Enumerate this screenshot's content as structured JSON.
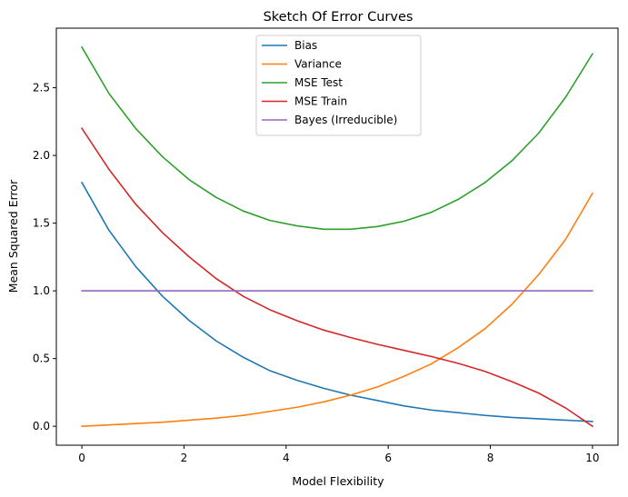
{
  "chart_data": {
    "type": "line",
    "title": "Sketch Of Error Curves",
    "xlabel": "Model Flexibility",
    "ylabel": "Mean Squared Error",
    "xlim": [
      -0.5,
      10.5
    ],
    "ylim": [
      -0.14,
      2.94
    ],
    "xticks": [
      0,
      2,
      4,
      6,
      8,
      10
    ],
    "yticks": [
      0.0,
      0.5,
      1.0,
      1.5,
      2.0,
      2.5
    ],
    "xtick_labels": [
      "0",
      "2",
      "4",
      "6",
      "8",
      "10"
    ],
    "ytick_labels": [
      "0.0",
      "0.5",
      "1.0",
      "1.5",
      "2.0",
      "2.5"
    ],
    "grid": false,
    "legend_position": "top-center",
    "x": [
      0,
      0.526,
      1.053,
      1.579,
      2.105,
      2.632,
      3.158,
      3.684,
      4.211,
      4.737,
      5.263,
      5.789,
      6.316,
      6.842,
      7.368,
      7.895,
      8.421,
      8.947,
      9.474,
      10
    ],
    "series": [
      {
        "name": "Bias",
        "color": "#1f77b4",
        "values": [
          1.8,
          1.45,
          1.18,
          0.96,
          0.78,
          0.63,
          0.51,
          0.41,
          0.34,
          0.28,
          0.23,
          0.19,
          0.15,
          0.12,
          0.1,
          0.08,
          0.065,
          0.055,
          0.045,
          0.035
        ]
      },
      {
        "name": "Variance",
        "color": "#ff7f0e",
        "values": [
          0.0,
          0.01,
          0.02,
          0.03,
          0.045,
          0.06,
          0.08,
          0.11,
          0.14,
          0.18,
          0.23,
          0.29,
          0.37,
          0.46,
          0.58,
          0.72,
          0.9,
          1.12,
          1.38,
          1.72
        ]
      },
      {
        "name": "MSE Test",
        "color": "#2ca02c",
        "values": [
          2.8,
          2.46,
          2.2,
          1.99,
          1.82,
          1.69,
          1.59,
          1.52,
          1.48,
          1.455,
          1.455,
          1.475,
          1.515,
          1.58,
          1.675,
          1.8,
          1.96,
          2.165,
          2.43,
          2.75
        ]
      },
      {
        "name": "MSE Train",
        "color": "#d62728",
        "values": [
          2.2,
          1.9,
          1.64,
          1.43,
          1.25,
          1.09,
          0.96,
          0.86,
          0.78,
          0.71,
          0.655,
          0.605,
          0.56,
          0.515,
          0.465,
          0.405,
          0.33,
          0.245,
          0.135,
          0.0
        ]
      },
      {
        "name": "Bayes (Irreducible)",
        "color": "#9467bd",
        "values": [
          1,
          1,
          1,
          1,
          1,
          1,
          1,
          1,
          1,
          1,
          1,
          1,
          1,
          1,
          1,
          1,
          1,
          1,
          1,
          1
        ]
      }
    ]
  }
}
